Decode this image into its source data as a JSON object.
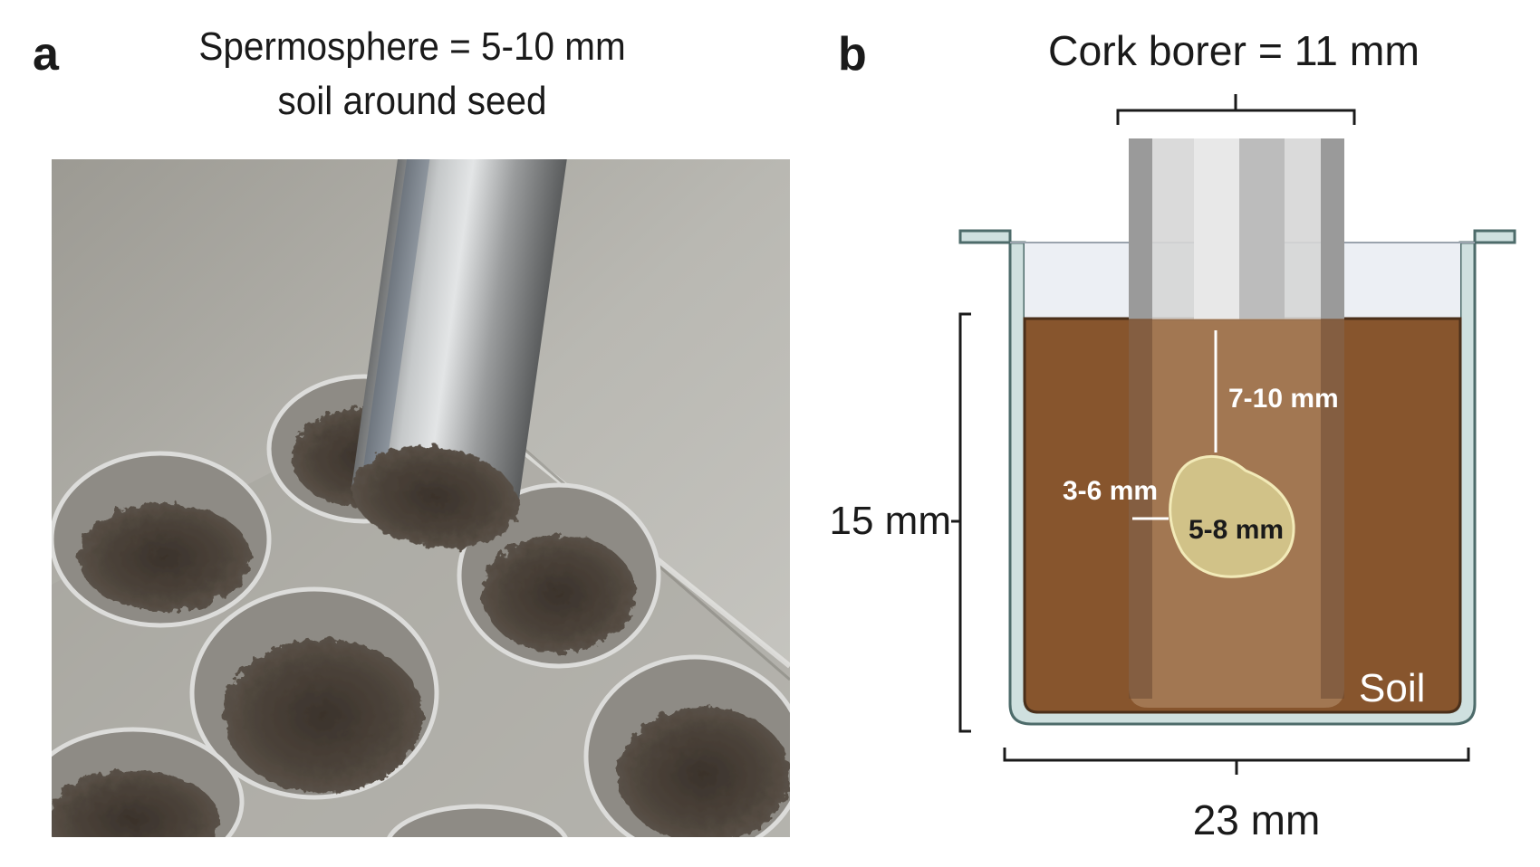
{
  "panel_a": {
    "letter": "a",
    "caption_line1": "Spermosphere = 5-10 mm",
    "caption_line2": "soil around seed"
  },
  "panel_b": {
    "letter": "b",
    "cork_borer_label": "Cork borer = 11 mm",
    "height_label": "15 mm",
    "width_label": "23 mm",
    "depth_label": "7-10 mm",
    "seed_width_label": "3-6 mm",
    "seed_length_label": "5-8 mm",
    "soil_label": "Soil"
  },
  "colors": {
    "soil": "#87552d",
    "well_rim": "#cfe0df",
    "cork_borer": "#c9c9c9",
    "seed": "#d9cf92"
  }
}
